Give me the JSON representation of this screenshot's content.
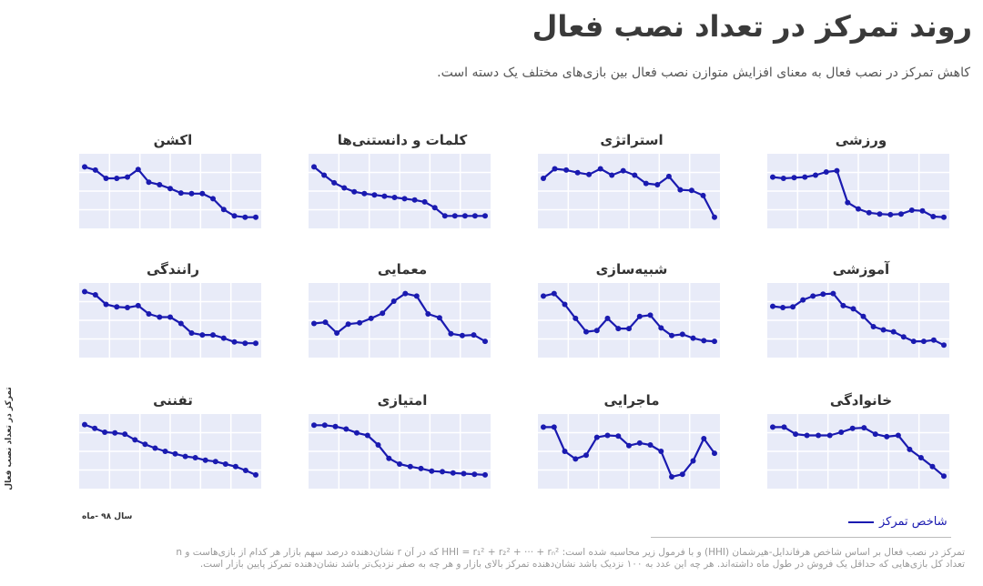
{
  "title": "روند تمرکز در تعداد نصب فعال",
  "subtitle": "کاهش تمرکز در نصب فعال به معنای افزایش متوازن نصب فعال بین بازی‌های مختلف یک دسته است.",
  "y_axis_label": "تمرکز در تعداد نصب فعال",
  "x_axis_label": "سال ۹۸ -ماه",
  "legend": {
    "label": "شاخص تمرکز"
  },
  "footnote": {
    "line1": "تمرکز در نصب فعال بر اساس شاخص هرفاندایل-هیرشمان (HHI) و با فرمول زیر محاسبه شده است:  HHI = r₁² + r₂² + ··· + rₙ² که در آن r نشان‌دهنده درصد سهم بازار هر کدام از بازی‌هاست و n",
    "line2": "تعداد کل بازی‌هایی که حداقل یک فروش در طول ماه داشته‌اند. هر چه این عدد به ۱۰۰ نزدیک باشد نشان‌دهنده تمرکز بالای بازار و هر چه به صفر نزدیک‌تر باشد نشان‌دهنده تمرکز پایین بازار است."
  },
  "colors": {
    "line": "#1a1ab0",
    "plot_bg": "#e8ebf8",
    "grid": "#ffffff"
  },
  "chart_data": [
    {
      "type": "line",
      "title": "ورزشی",
      "values": [
        0.72,
        0.7,
        0.71,
        0.72,
        0.75,
        0.8,
        0.82,
        0.32,
        0.22,
        0.16,
        0.14,
        0.13,
        0.14,
        0.2,
        0.19,
        0.1,
        0.09
      ]
    },
    {
      "type": "line",
      "title": "استراتژی",
      "values": [
        0.7,
        0.85,
        0.83,
        0.79,
        0.76,
        0.85,
        0.75,
        0.82,
        0.75,
        0.62,
        0.6,
        0.73,
        0.52,
        0.51,
        0.43,
        0.09
      ]
    },
    {
      "type": "line",
      "title": "کلمات و دانستنی‌ها",
      "values": [
        0.88,
        0.75,
        0.63,
        0.55,
        0.49,
        0.46,
        0.44,
        0.42,
        0.4,
        0.38,
        0.36,
        0.33,
        0.24,
        0.11,
        0.11,
        0.11,
        0.11,
        0.11
      ]
    },
    {
      "type": "line",
      "title": "اکشن",
      "values": [
        0.88,
        0.83,
        0.7,
        0.7,
        0.72,
        0.84,
        0.64,
        0.6,
        0.54,
        0.47,
        0.46,
        0.46,
        0.38,
        0.21,
        0.11,
        0.09,
        0.09
      ]
    },
    {
      "type": "line",
      "title": "آموزشی",
      "values": [
        0.72,
        0.7,
        0.71,
        0.82,
        0.88,
        0.91,
        0.92,
        0.73,
        0.68,
        0.56,
        0.4,
        0.35,
        0.32,
        0.24,
        0.17,
        0.17,
        0.19,
        0.11
      ]
    },
    {
      "type": "line",
      "title": "شبیه‌سازی",
      "values": [
        0.88,
        0.92,
        0.75,
        0.53,
        0.32,
        0.34,
        0.53,
        0.37,
        0.37,
        0.56,
        0.58,
        0.38,
        0.26,
        0.28,
        0.22,
        0.18,
        0.17
      ]
    },
    {
      "type": "line",
      "title": "معمایی",
      "values": [
        0.45,
        0.47,
        0.3,
        0.44,
        0.46,
        0.53,
        0.61,
        0.8,
        0.92,
        0.88,
        0.6,
        0.54,
        0.29,
        0.26,
        0.27,
        0.17
      ]
    },
    {
      "type": "line",
      "title": "رانندگی",
      "values": [
        0.95,
        0.9,
        0.75,
        0.71,
        0.7,
        0.73,
        0.6,
        0.55,
        0.55,
        0.45,
        0.3,
        0.27,
        0.27,
        0.22,
        0.16,
        0.14,
        0.14
      ]
    },
    {
      "type": "line",
      "title": "خانوادگی",
      "values": [
        0.88,
        0.88,
        0.77,
        0.75,
        0.75,
        0.75,
        0.8,
        0.86,
        0.87,
        0.77,
        0.73,
        0.75,
        0.53,
        0.4,
        0.26,
        0.11
      ]
    },
    {
      "type": "line",
      "title": "ماجرایی",
      "values": [
        0.88,
        0.88,
        0.5,
        0.38,
        0.44,
        0.72,
        0.75,
        0.74,
        0.59,
        0.63,
        0.6,
        0.5,
        0.1,
        0.14,
        0.35,
        0.7,
        0.47
      ]
    },
    {
      "type": "line",
      "title": "امتیازی",
      "values": [
        0.91,
        0.91,
        0.89,
        0.85,
        0.79,
        0.75,
        0.6,
        0.39,
        0.3,
        0.26,
        0.23,
        0.19,
        0.18,
        0.16,
        0.15,
        0.14,
        0.13
      ]
    },
    {
      "type": "line",
      "title": "تفننی",
      "values": [
        0.92,
        0.86,
        0.8,
        0.79,
        0.77,
        0.68,
        0.61,
        0.55,
        0.5,
        0.46,
        0.42,
        0.4,
        0.36,
        0.34,
        0.3,
        0.26,
        0.2,
        0.13
      ]
    }
  ]
}
